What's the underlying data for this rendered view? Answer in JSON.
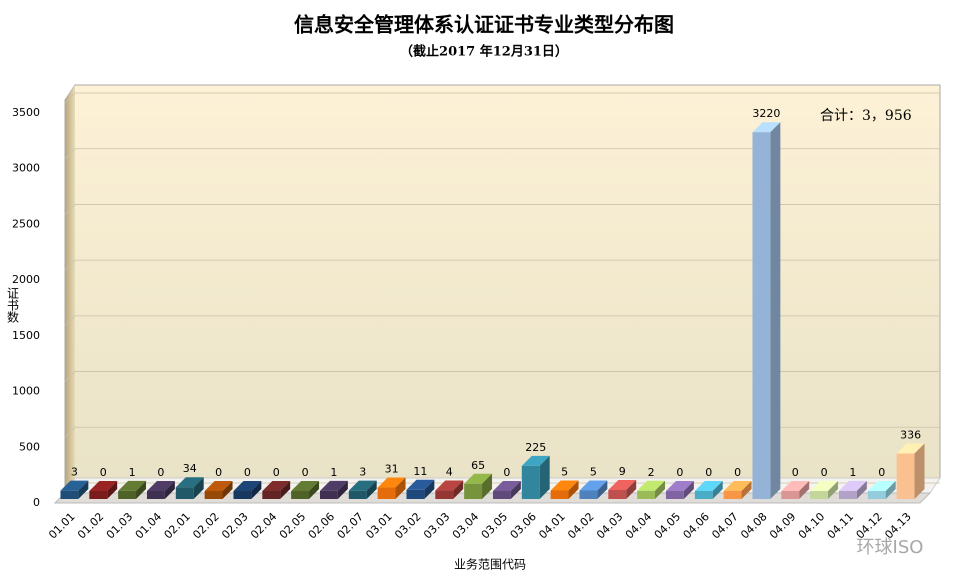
{
  "chart_data": {
    "type": "bar",
    "title": "信息安全管理体系认证证书专业类型分布图",
    "subtitle": "（截止2017 年12月31日）",
    "y_label": "证书数",
    "x_label": "业务范围代码",
    "annotation": "合计：3，956",
    "watermark": "环球ISO",
    "categories": [
      "01.01",
      "01.02",
      "01.03",
      "01.04",
      "02.01",
      "02.02",
      "02.03",
      "02.04",
      "02.05",
      "02.06",
      "02.07",
      "03.01",
      "03.02",
      "03.03",
      "03.04",
      "03.05",
      "03.06",
      "04.01",
      "04.02",
      "04.03",
      "04.04",
      "04.05",
      "04.06",
      "04.07",
      "04.08",
      "04.09",
      "04.10",
      "04.11",
      "04.12",
      "04.13"
    ],
    "values": [
      3,
      0,
      1,
      0,
      34,
      0,
      0,
      0,
      0,
      1,
      3,
      31,
      11,
      4,
      65,
      0,
      225,
      5,
      5,
      9,
      2,
      0,
      0,
      0,
      3220,
      0,
      0,
      1,
      0,
      336
    ],
    "colors": [
      "#1f4e79",
      "#7b1c1c",
      "#4f6228",
      "#3f3151",
      "#215968",
      "#984807",
      "#17375e",
      "#632423",
      "#4f6228",
      "#403152",
      "#205867",
      "#e46c0a",
      "#1f497d",
      "#943634",
      "#77933c",
      "#604a7b",
      "#31859c",
      "#e46c0a",
      "#4f81bd",
      "#c0504d",
      "#9bbb59",
      "#8064a2",
      "#4bacc6",
      "#f79646",
      "#95b3d7",
      "#d99694",
      "#c3d69b",
      "#b2a2c7",
      "#93cddd",
      "#fac08f"
    ],
    "ylim": [
      0,
      3500
    ],
    "yticks": [
      0,
      500,
      1000,
      1500,
      2000,
      2500,
      3000,
      3500
    ],
    "grid": true
  }
}
